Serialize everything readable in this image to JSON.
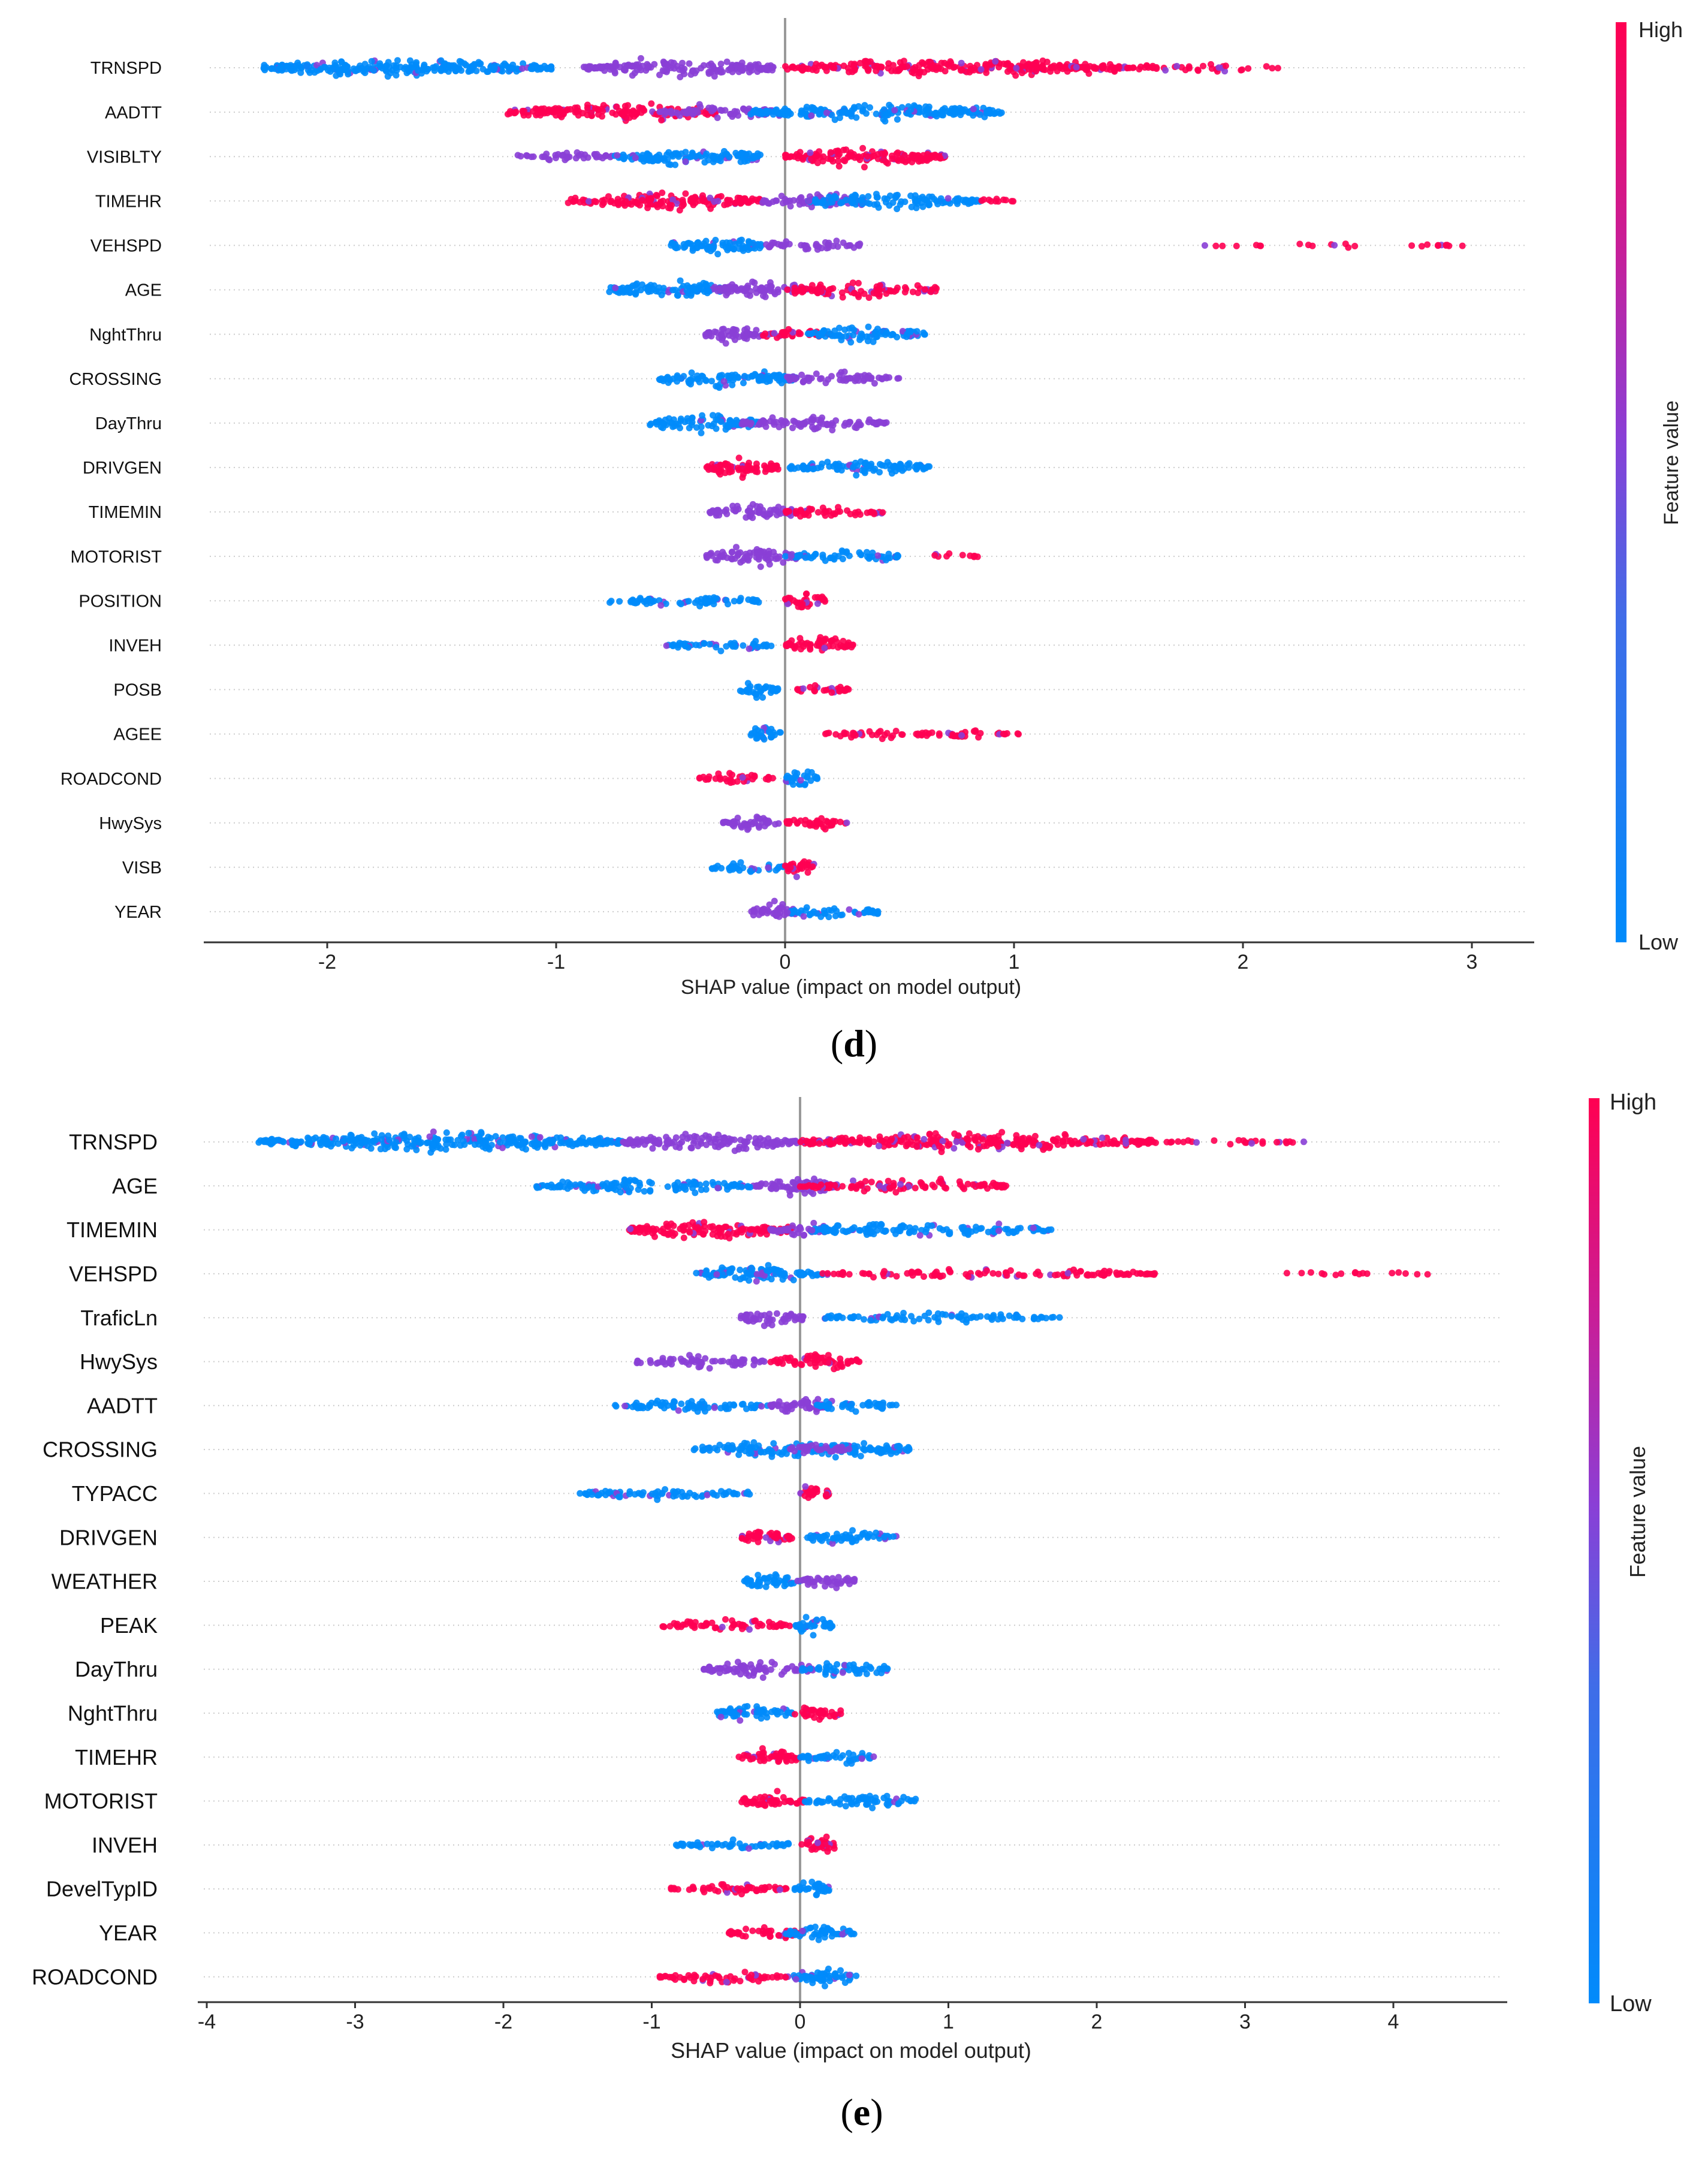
{
  "figure": {
    "captions": {
      "d": "(d)",
      "e": "(e)"
    },
    "colors": {
      "high": "#ff0052",
      "low": "#008bfb",
      "mid": "#8a3fd6",
      "axis": "#333333",
      "zero": "#999999",
      "grid": "#cccccc"
    }
  },
  "chart_data": [
    {
      "id": "d",
      "type": "scatter",
      "subtype": "shap-beeswarm",
      "caption_letter": "d",
      "xlabel": "SHAP value (impact on model output)",
      "ylabel": "",
      "xlim": [
        -2.5,
        3.25
      ],
      "xticks": [
        -2,
        -1,
        0,
        1,
        2,
        3
      ],
      "xtick_labels": [
        "-2",
        "-1",
        "0",
        "1",
        "2",
        "3"
      ],
      "colorbar": {
        "label": "Feature value",
        "high": "High",
        "low": "Low"
      },
      "grid": "dotted horizontal",
      "features": [
        {
          "name": "TRNSPD",
          "segments": [
            {
              "from": -2.28,
              "to": -1.02,
              "color": "low",
              "density": 1.0
            },
            {
              "from": -0.88,
              "to": -0.05,
              "color": "mid",
              "density": 0.9
            },
            {
              "from": 0.0,
              "to": 1.5,
              "color": "high",
              "density": 0.85
            },
            {
              "from": 1.5,
              "to": 2.17,
              "color": "high",
              "density": 0.25
            }
          ]
        },
        {
          "name": "AADTT",
          "segments": [
            {
              "from": -1.22,
              "to": -0.3,
              "color": "high",
              "density": 0.8
            },
            {
              "from": -0.55,
              "to": -0.05,
              "color": "mid",
              "density": 0.6
            },
            {
              "from": -0.15,
              "to": 0.95,
              "color": "low",
              "density": 0.85
            }
          ]
        },
        {
          "name": "VISIBLTY",
          "segments": [
            {
              "from": -1.17,
              "to": -0.75,
              "color": "mid",
              "density": 0.4
            },
            {
              "from": -0.75,
              "to": -0.1,
              "color": "low",
              "density": 0.9
            },
            {
              "from": 0.0,
              "to": 0.7,
              "color": "high",
              "density": 1.0
            }
          ]
        },
        {
          "name": "TIMEHR",
          "segments": [
            {
              "from": -0.95,
              "to": -0.1,
              "color": "high",
              "density": 0.8
            },
            {
              "from": -0.1,
              "to": 0.35,
              "color": "mid",
              "density": 0.7
            },
            {
              "from": 0.1,
              "to": 0.85,
              "color": "low",
              "density": 0.7
            },
            {
              "from": 0.85,
              "to": 1.0,
              "color": "high",
              "density": 0.15
            }
          ]
        },
        {
          "name": "VEHSPD",
          "segments": [
            {
              "from": -0.5,
              "to": -0.1,
              "color": "low",
              "density": 0.85
            },
            {
              "from": -0.1,
              "to": 0.35,
              "color": "mid",
              "density": 0.4
            },
            {
              "from": 1.8,
              "to": 3.0,
              "color": "high",
              "density": 0.08
            }
          ]
        },
        {
          "name": "AGE",
          "segments": [
            {
              "from": -0.78,
              "to": -0.25,
              "color": "low",
              "density": 0.9
            },
            {
              "from": -0.3,
              "to": 0.1,
              "color": "mid",
              "density": 0.8
            },
            {
              "from": 0.0,
              "to": 0.68,
              "color": "high",
              "density": 0.6
            }
          ]
        },
        {
          "name": "NghtThru",
          "segments": [
            {
              "from": -0.35,
              "to": -0.1,
              "color": "mid",
              "density": 0.9
            },
            {
              "from": -0.1,
              "to": 0.2,
              "color": "high",
              "density": 0.5
            },
            {
              "from": 0.1,
              "to": 0.63,
              "color": "low",
              "density": 0.7
            }
          ]
        },
        {
          "name": "CROSSING",
          "segments": [
            {
              "from": -0.55,
              "to": 0.05,
              "color": "low",
              "density": 0.85
            },
            {
              "from": 0.0,
              "to": 0.5,
              "color": "mid",
              "density": 0.5
            }
          ]
        },
        {
          "name": "DayThru",
          "segments": [
            {
              "from": -0.6,
              "to": -0.1,
              "color": "low",
              "density": 0.8
            },
            {
              "from": -0.2,
              "to": 0.45,
              "color": "mid",
              "density": 0.6
            }
          ]
        },
        {
          "name": "DRIVGEN",
          "segments": [
            {
              "from": -0.35,
              "to": -0.03,
              "color": "high",
              "density": 1.0
            },
            {
              "from": 0.02,
              "to": 0.63,
              "color": "low",
              "density": 0.7
            }
          ]
        },
        {
          "name": "TIMEMIN",
          "segments": [
            {
              "from": -0.33,
              "to": 0.05,
              "color": "mid",
              "density": 0.7
            },
            {
              "from": 0.0,
              "to": 0.43,
              "color": "high",
              "density": 0.45
            }
          ]
        },
        {
          "name": "MOTORIST",
          "segments": [
            {
              "from": -0.35,
              "to": 0.05,
              "color": "mid",
              "density": 0.8
            },
            {
              "from": 0.0,
              "to": 0.5,
              "color": "low",
              "density": 0.5
            },
            {
              "from": 0.6,
              "to": 0.85,
              "color": "high",
              "density": 0.1
            }
          ]
        },
        {
          "name": "POSITION",
          "segments": [
            {
              "from": -0.77,
              "to": -0.1,
              "color": "low",
              "density": 0.45
            },
            {
              "from": 0.0,
              "to": 0.18,
              "color": "high",
              "density": 0.8
            }
          ]
        },
        {
          "name": "INVEH",
          "segments": [
            {
              "from": -0.52,
              "to": -0.05,
              "color": "low",
              "density": 0.45
            },
            {
              "from": 0.0,
              "to": 0.3,
              "color": "high",
              "density": 0.8
            }
          ]
        },
        {
          "name": "POSB",
          "segments": [
            {
              "from": -0.2,
              "to": -0.03,
              "color": "low",
              "density": 0.8
            },
            {
              "from": 0.05,
              "to": 0.28,
              "color": "high",
              "density": 0.5
            }
          ]
        },
        {
          "name": "AGEE",
          "segments": [
            {
              "from": -0.15,
              "to": -0.02,
              "color": "low",
              "density": 0.8
            },
            {
              "from": 0.15,
              "to": 1.02,
              "color": "high",
              "density": 0.35
            }
          ]
        },
        {
          "name": "ROADCOND",
          "segments": [
            {
              "from": -0.38,
              "to": -0.05,
              "color": "high",
              "density": 0.45
            },
            {
              "from": 0.0,
              "to": 0.15,
              "color": "low",
              "density": 0.8
            }
          ]
        },
        {
          "name": "HwySys",
          "segments": [
            {
              "from": -0.28,
              "to": 0.0,
              "color": "mid",
              "density": 0.6
            },
            {
              "from": 0.0,
              "to": 0.27,
              "color": "high",
              "density": 0.6
            }
          ]
        },
        {
          "name": "VISB",
          "segments": [
            {
              "from": -0.32,
              "to": 0.0,
              "color": "low",
              "density": 0.45
            },
            {
              "from": 0.0,
              "to": 0.14,
              "color": "high",
              "density": 0.8
            }
          ]
        },
        {
          "name": "YEAR",
          "segments": [
            {
              "from": -0.15,
              "to": 0.05,
              "color": "mid",
              "density": 0.8
            },
            {
              "from": 0.0,
              "to": 0.42,
              "color": "low",
              "density": 0.5
            }
          ]
        }
      ]
    },
    {
      "id": "e",
      "type": "scatter",
      "subtype": "shap-beeswarm",
      "caption_letter": "e",
      "xlabel": "SHAP value (impact on model output)",
      "ylabel": "",
      "xlim": [
        -4.1,
        4.75
      ],
      "xticks": [
        -4,
        -3,
        -2,
        -1,
        0,
        1,
        2,
        3,
        4
      ],
      "xtick_labels": [
        "-4",
        "-3",
        "-2",
        "-1",
        "0",
        "1",
        "2",
        "3",
        "4"
      ],
      "colorbar": {
        "label": "Feature value",
        "high": "High",
        "low": "Low"
      },
      "grid": "dotted horizontal",
      "features": [
        {
          "name": "TRNSPD",
          "segments": [
            {
              "from": -3.65,
              "to": -1.2,
              "color": "low",
              "density": 1.0
            },
            {
              "from": -1.2,
              "to": 0.0,
              "color": "mid",
              "density": 0.8
            },
            {
              "from": 0.0,
              "to": 2.4,
              "color": "high",
              "density": 0.85
            },
            {
              "from": 2.4,
              "to": 3.4,
              "color": "high",
              "density": 0.15
            }
          ]
        },
        {
          "name": "AGE",
          "segments": [
            {
              "from": -1.8,
              "to": -0.3,
              "color": "low",
              "density": 0.6
            },
            {
              "from": -0.3,
              "to": 0.25,
              "color": "mid",
              "density": 0.9
            },
            {
              "from": 0.0,
              "to": 1.4,
              "color": "high",
              "density": 0.55
            }
          ]
        },
        {
          "name": "TIMEMIN",
          "segments": [
            {
              "from": -1.17,
              "to": -0.05,
              "color": "high",
              "density": 0.9
            },
            {
              "from": -0.2,
              "to": 0.2,
              "color": "mid",
              "density": 0.7
            },
            {
              "from": 0.05,
              "to": 1.7,
              "color": "low",
              "density": 0.6
            }
          ]
        },
        {
          "name": "VEHSPD",
          "segments": [
            {
              "from": -0.7,
              "to": 0.15,
              "color": "low",
              "density": 0.9
            },
            {
              "from": 0.15,
              "to": 2.4,
              "color": "high",
              "density": 0.35
            },
            {
              "from": 3.0,
              "to": 4.3,
              "color": "high",
              "density": 0.06
            }
          ]
        },
        {
          "name": "TraficLn",
          "segments": [
            {
              "from": -0.4,
              "to": 0.03,
              "color": "mid",
              "density": 0.8
            },
            {
              "from": 0.15,
              "to": 1.75,
              "color": "low",
              "density": 0.4
            }
          ]
        },
        {
          "name": "HwySys",
          "segments": [
            {
              "from": -1.1,
              "to": -0.2,
              "color": "mid",
              "density": 0.5
            },
            {
              "from": -0.2,
              "to": 0.4,
              "color": "high",
              "density": 0.7
            }
          ]
        },
        {
          "name": "AADTT",
          "segments": [
            {
              "from": -1.25,
              "to": -0.2,
              "color": "low",
              "density": 0.5
            },
            {
              "from": -0.2,
              "to": 0.2,
              "color": "mid",
              "density": 0.85
            },
            {
              "from": 0.1,
              "to": 0.65,
              "color": "low",
              "density": 0.5
            }
          ]
        },
        {
          "name": "CROSSING",
          "segments": [
            {
              "from": -0.72,
              "to": 0.75,
              "color": "low",
              "density": 0.8
            },
            {
              "from": -0.1,
              "to": 0.35,
              "color": "mid",
              "density": 0.4
            }
          ]
        },
        {
          "name": "TYPACC",
          "segments": [
            {
              "from": -1.5,
              "to": -0.3,
              "color": "low",
              "density": 0.45
            },
            {
              "from": 0.0,
              "to": 0.2,
              "color": "high",
              "density": 0.8
            }
          ]
        },
        {
          "name": "DRIVGEN",
          "segments": [
            {
              "from": -0.4,
              "to": -0.03,
              "color": "high",
              "density": 0.9
            },
            {
              "from": 0.05,
              "to": 0.65,
              "color": "low",
              "density": 0.7
            }
          ]
        },
        {
          "name": "WEATHER",
          "segments": [
            {
              "from": -0.4,
              "to": 0.0,
              "color": "low",
              "density": 0.7
            },
            {
              "from": 0.0,
              "to": 0.38,
              "color": "mid",
              "density": 0.7
            }
          ]
        },
        {
          "name": "PEAK",
          "segments": [
            {
              "from": -0.93,
              "to": -0.03,
              "color": "high",
              "density": 0.45
            },
            {
              "from": -0.03,
              "to": 0.22,
              "color": "low",
              "density": 0.85
            }
          ]
        },
        {
          "name": "DayThru",
          "segments": [
            {
              "from": -0.65,
              "to": 0.1,
              "color": "mid",
              "density": 0.7
            },
            {
              "from": 0.0,
              "to": 0.62,
              "color": "low",
              "density": 0.55
            }
          ]
        },
        {
          "name": "NghtThru",
          "segments": [
            {
              "from": -0.58,
              "to": -0.05,
              "color": "low",
              "density": 0.8
            },
            {
              "from": -0.05,
              "to": 0.32,
              "color": "high",
              "density": 0.6
            }
          ]
        },
        {
          "name": "TIMEHR",
          "segments": [
            {
              "from": -0.42,
              "to": 0.0,
              "color": "high",
              "density": 0.75
            },
            {
              "from": 0.0,
              "to": 0.52,
              "color": "low",
              "density": 0.6
            }
          ]
        },
        {
          "name": "MOTORIST",
          "segments": [
            {
              "from": -0.4,
              "to": 0.03,
              "color": "high",
              "density": 0.8
            },
            {
              "from": 0.03,
              "to": 0.8,
              "color": "low",
              "density": 0.55
            }
          ]
        },
        {
          "name": "INVEH",
          "segments": [
            {
              "from": -0.85,
              "to": -0.05,
              "color": "low",
              "density": 0.45
            },
            {
              "from": 0.0,
              "to": 0.27,
              "color": "high",
              "density": 0.8
            }
          ]
        },
        {
          "name": "DevelTypID",
          "segments": [
            {
              "from": -0.88,
              "to": -0.05,
              "color": "high",
              "density": 0.45
            },
            {
              "from": -0.05,
              "to": 0.2,
              "color": "low",
              "density": 0.8
            }
          ]
        },
        {
          "name": "YEAR",
          "segments": [
            {
              "from": -0.48,
              "to": 0.05,
              "color": "high",
              "density": 0.55
            },
            {
              "from": -0.1,
              "to": 0.38,
              "color": "low",
              "density": 0.7
            }
          ]
        },
        {
          "name": "ROADCOND",
          "segments": [
            {
              "from": -0.95,
              "to": -0.05,
              "color": "high",
              "density": 0.45
            },
            {
              "from": -0.05,
              "to": 0.38,
              "color": "low",
              "density": 0.85
            }
          ]
        }
      ]
    }
  ]
}
